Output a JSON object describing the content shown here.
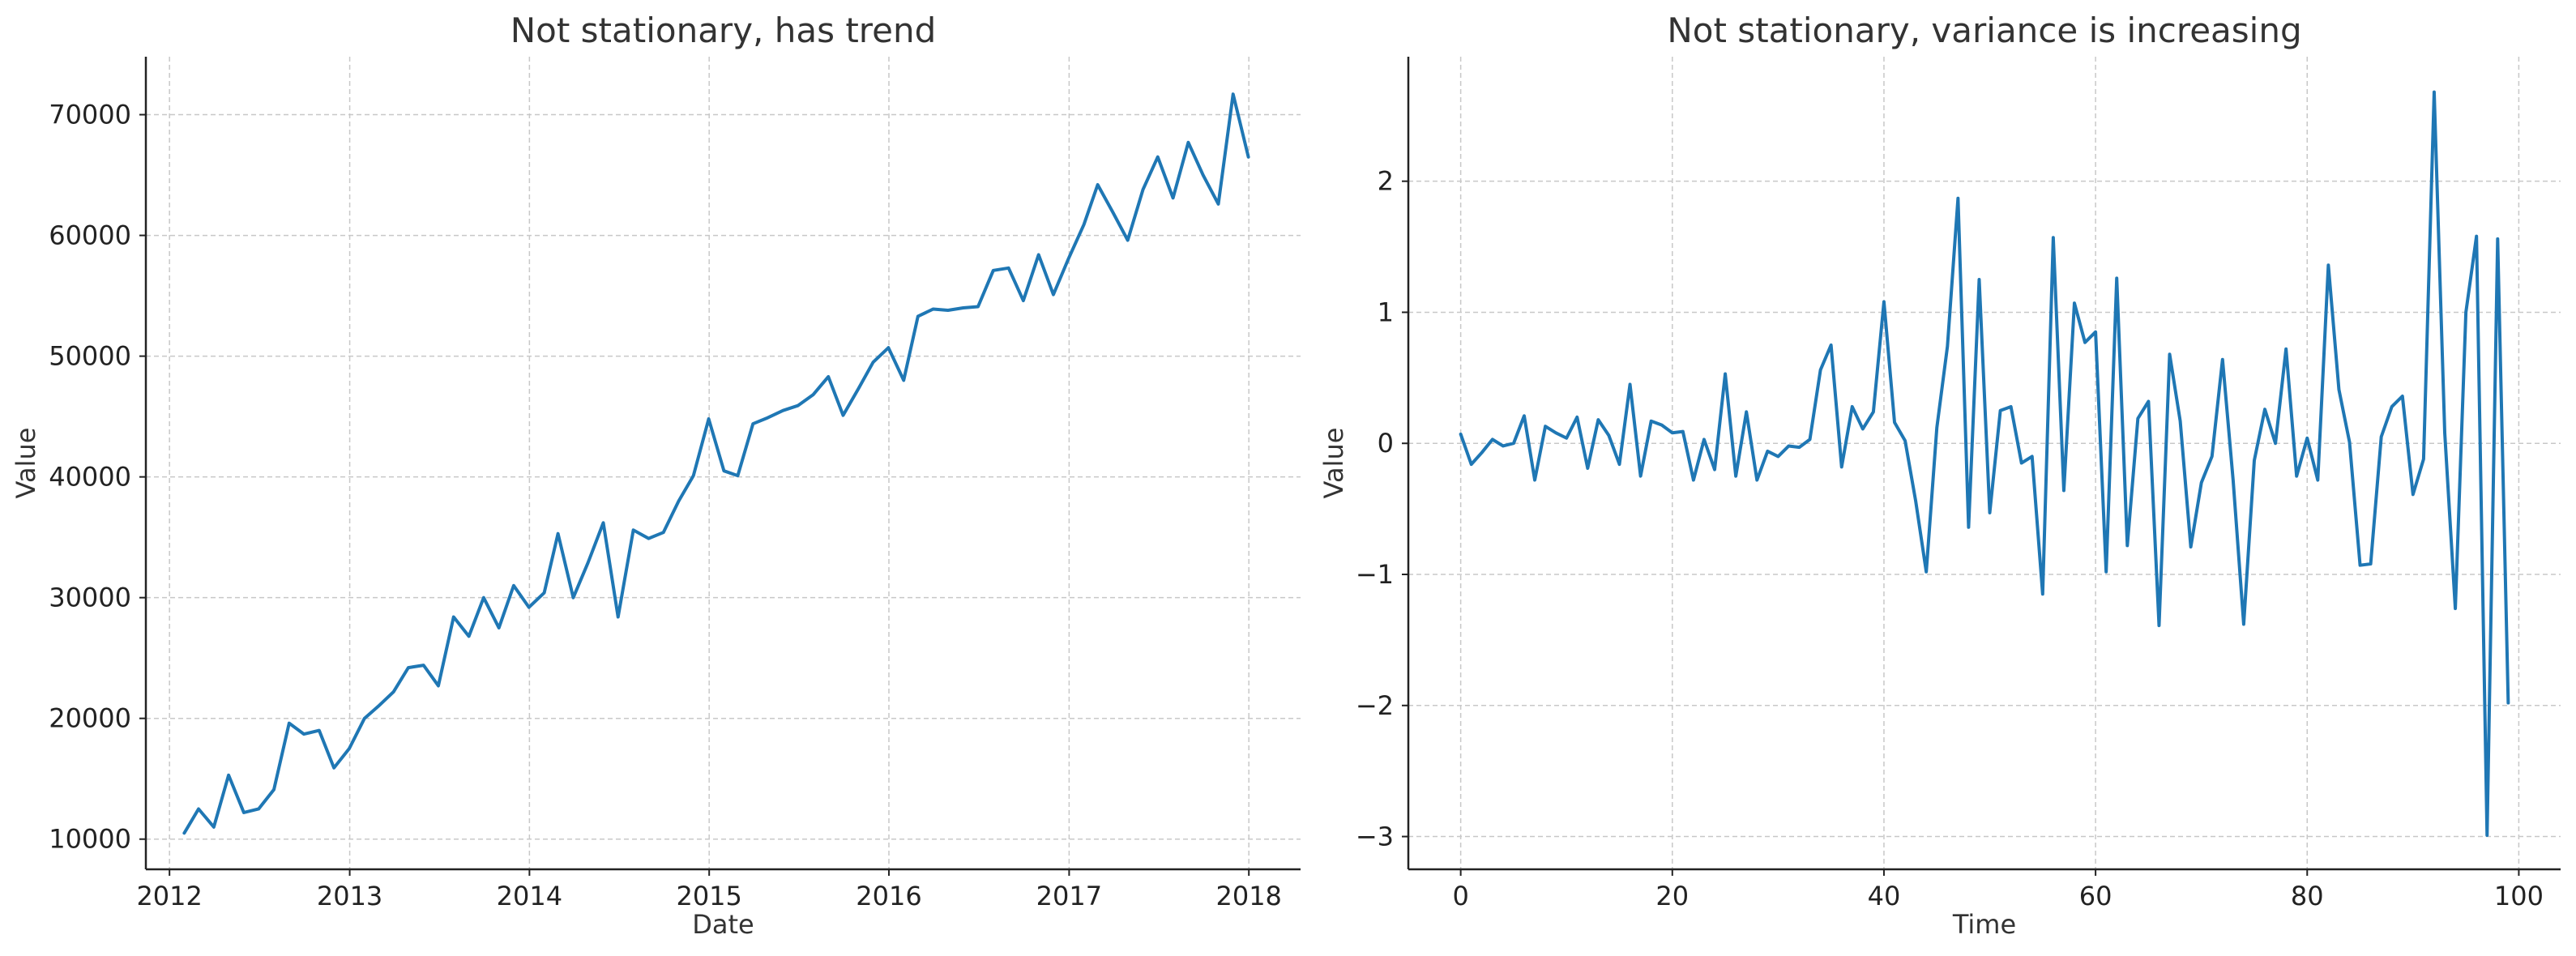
{
  "chart_data": [
    {
      "type": "line",
      "title": "Not stationary, has trend",
      "xlabel": "Date",
      "ylabel": "Value",
      "x_ticks": [
        "2012",
        "2013",
        "2014",
        "2015",
        "2016",
        "2017",
        "2018"
      ],
      "y_ticks": [
        "10000",
        "20000",
        "30000",
        "40000",
        "50000",
        "60000",
        "70000"
      ],
      "xlim": [
        "2011-11-14",
        "2018-04-16"
      ],
      "ylim": [
        7500,
        74800
      ],
      "grid": true,
      "color": "#1f77b4",
      "series": [
        {
          "x": [
            "2012-01-31",
            "2012-02-29",
            "2012-03-31",
            "2012-04-30",
            "2012-05-31",
            "2012-06-30",
            "2012-07-31",
            "2012-08-31",
            "2012-09-30",
            "2012-10-31",
            "2012-11-30",
            "2012-12-31",
            "2013-01-31",
            "2013-02-28",
            "2013-03-31",
            "2013-04-30",
            "2013-05-31",
            "2013-06-30",
            "2013-07-31",
            "2013-08-31",
            "2013-09-30",
            "2013-10-31",
            "2013-11-30",
            "2013-12-31",
            "2014-01-31",
            "2014-02-28",
            "2014-03-31",
            "2014-04-30",
            "2014-05-31",
            "2014-06-30",
            "2014-07-31",
            "2014-08-31",
            "2014-09-30",
            "2014-10-31",
            "2014-11-30",
            "2014-12-31",
            "2015-01-31",
            "2015-02-28",
            "2015-03-31",
            "2015-04-30",
            "2015-05-31",
            "2015-06-30",
            "2015-07-31",
            "2015-08-31",
            "2015-09-30",
            "2015-10-31",
            "2015-11-30",
            "2015-12-31",
            "2016-01-31",
            "2016-02-29",
            "2016-03-31",
            "2016-04-30",
            "2016-05-31",
            "2016-06-30",
            "2016-07-31",
            "2016-08-31",
            "2016-09-30",
            "2016-10-31",
            "2016-11-30",
            "2016-12-31",
            "2017-01-31",
            "2017-02-28",
            "2017-03-31",
            "2017-04-30",
            "2017-05-31",
            "2017-06-30",
            "2017-07-31",
            "2017-08-31",
            "2017-09-30",
            "2017-10-31",
            "2017-11-30",
            "2017-12-31"
          ],
          "values": [
            10500,
            12500,
            11000,
            15300,
            12200,
            12500,
            14100,
            19600,
            18700,
            19000,
            15900,
            17500,
            20000,
            21000,
            22200,
            24200,
            24400,
            22700,
            28400,
            26800,
            30000,
            27500,
            31000,
            29200,
            30400,
            35300,
            30000,
            32900,
            36200,
            28400,
            35600,
            34900,
            35400,
            38000,
            40100,
            44800,
            40500,
            40100,
            44400,
            44900,
            45500,
            45900,
            46800,
            48300,
            45100,
            47300,
            49500,
            50700,
            48000,
            53300,
            53900,
            53800,
            54000,
            54100,
            57100,
            57300,
            54600,
            58400,
            55100,
            58100,
            60900,
            64200,
            61900,
            59600,
            63800,
            66500,
            63100,
            67700,
            65000,
            62600,
            71700,
            66500
          ]
        }
      ]
    },
    {
      "type": "line",
      "title": "Not stationary, variance is increasing",
      "xlabel": "Time",
      "ylabel": "Value",
      "x_ticks": [
        "0",
        "20",
        "40",
        "60",
        "80",
        "100"
      ],
      "y_ticks": [
        "−3",
        "−2",
        "−1",
        "0",
        "1",
        "2"
      ],
      "xlim": [
        -4.95,
        103.95
      ],
      "ylim": [
        -3.25,
        2.95
      ],
      "grid": true,
      "color": "#1f77b4",
      "series": [
        {
          "x": [
            0,
            1,
            2,
            3,
            4,
            5,
            6,
            7,
            8,
            9,
            10,
            11,
            12,
            13,
            14,
            15,
            16,
            17,
            18,
            19,
            20,
            21,
            22,
            23,
            24,
            25,
            26,
            27,
            28,
            29,
            30,
            31,
            32,
            33,
            34,
            35,
            36,
            37,
            38,
            39,
            40,
            41,
            42,
            43,
            44,
            45,
            46,
            47,
            48,
            49,
            50,
            51,
            52,
            53,
            54,
            55,
            56,
            57,
            58,
            59,
            60,
            61,
            62,
            63,
            64,
            65,
            66,
            67,
            68,
            69,
            70,
            71,
            72,
            73,
            74,
            75,
            76,
            77,
            78,
            79,
            80,
            81,
            82,
            83,
            84,
            85,
            86,
            87,
            88,
            89,
            90,
            91,
            92,
            93,
            94,
            95,
            96,
            97,
            98,
            99
          ],
          "values": [
            0.07,
            -0.16,
            -0.07,
            0.03,
            -0.02,
            0.0,
            0.21,
            -0.28,
            0.13,
            0.08,
            0.04,
            0.2,
            -0.19,
            0.18,
            0.06,
            -0.16,
            0.45,
            -0.25,
            0.17,
            0.14,
            0.08,
            0.09,
            -0.28,
            0.03,
            -0.2,
            0.53,
            -0.25,
            0.24,
            -0.28,
            -0.06,
            -0.1,
            -0.02,
            -0.03,
            0.03,
            0.56,
            0.75,
            -0.18,
            0.28,
            0.11,
            0.24,
            1.08,
            0.16,
            0.02,
            -0.44,
            -0.98,
            0.12,
            0.74,
            1.87,
            -0.64,
            1.25,
            -0.53,
            0.25,
            0.28,
            -0.15,
            -0.1,
            -1.15,
            1.57,
            -0.36,
            1.07,
            0.77,
            0.85,
            -0.98,
            1.26,
            -0.78,
            0.19,
            0.32,
            -1.39,
            0.68,
            0.17,
            -0.79,
            -0.3,
            -0.1,
            0.64,
            -0.28,
            -1.38,
            -0.13,
            0.26,
            0.0,
            0.72,
            -0.25,
            0.04,
            -0.28,
            1.36,
            0.41,
            0.01,
            -0.93,
            -0.92,
            0.05,
            0.28,
            0.36,
            -0.39,
            -0.12,
            2.68,
            0.08,
            -1.26,
            1.0,
            1.58,
            -2.99,
            1.56,
            -1.98
          ]
        }
      ]
    }
  ]
}
